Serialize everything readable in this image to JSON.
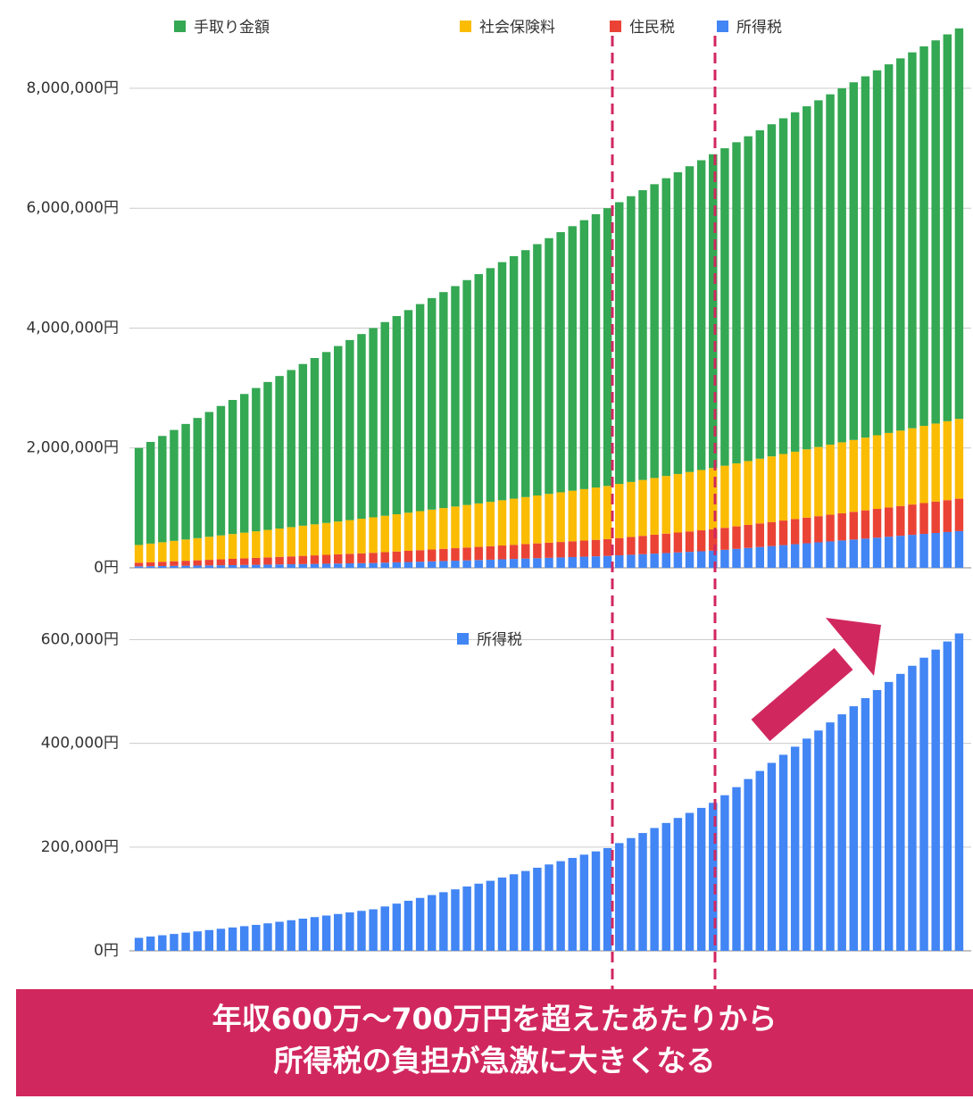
{
  "chart_data": [
    {
      "type": "bar",
      "stacked": true,
      "categories": [
        null,
        null,
        null,
        null,
        null,
        null,
        null,
        null,
        null,
        null,
        null,
        null,
        null,
        null,
        null,
        null,
        null,
        null,
        null,
        null,
        null,
        null,
        null,
        null,
        null,
        null,
        null,
        null,
        null,
        null,
        null,
        null,
        null,
        null,
        null,
        null,
        null,
        null,
        null,
        null,
        null,
        null,
        null,
        null,
        null,
        null,
        null,
        null,
        null,
        null,
        null,
        null,
        null,
        null,
        null,
        null,
        null,
        null,
        null,
        null,
        null,
        null,
        null,
        null,
        null,
        null,
        null,
        null,
        null,
        null,
        null
      ],
      "series": [
        {
          "name": "手取り金額",
          "color": "#34a853",
          "values": [
            1619000,
            1696200,
            1773400,
            1850600,
            1927800,
            2005000,
            2082200,
            2159400,
            2236600,
            2313800,
            2391000,
            2467700,
            2544400,
            2621100,
            2697800,
            2774500,
            2851200,
            2927900,
            3004600,
            3081300,
            3158000,
            3232200,
            3306400,
            3380600,
            3454800,
            3529000,
            3603200,
            3677400,
            3751600,
            3825800,
            3900000,
            3973400,
            4046800,
            4120200,
            4193600,
            4267000,
            4340400,
            4413800,
            4487200,
            4560600,
            4634000,
            4700800,
            4767600,
            4834400,
            4901200,
            4968000,
            5034800,
            5101600,
            5168400,
            5235200,
            5297000,
            5357900,
            5418800,
            5479700,
            5540600,
            5601500,
            5662400,
            5723300,
            5784200,
            5845100,
            5906000,
            5966900,
            6027800,
            6088700,
            6149600,
            6210500,
            6271400,
            6332300,
            6393200,
            6454100,
            6515000
          ]
        },
        {
          "name": "社会保険料",
          "color": "#fbbc04",
          "values": [
            296000,
            310800,
            325600,
            340400,
            355200,
            370000,
            384800,
            399600,
            414400,
            429200,
            444000,
            458800,
            473600,
            488400,
            503200,
            518000,
            532800,
            547600,
            562400,
            577200,
            592000,
            606800,
            621600,
            636400,
            651200,
            666000,
            680800,
            695600,
            710400,
            725200,
            740000,
            754800,
            769600,
            784400,
            799200,
            814000,
            828800,
            843600,
            858400,
            873200,
            888000,
            902800,
            917600,
            932400,
            947200,
            962000,
            976800,
            991600,
            1006400,
            1021200,
            1036000,
            1050800,
            1065600,
            1080400,
            1095200,
            1110000,
            1124800,
            1139600,
            1154400,
            1169200,
            1184000,
            1198800,
            1213600,
            1228400,
            1243200,
            1258000,
            1272800,
            1287600,
            1302400,
            1317200,
            1332000
          ]
        },
        {
          "name": "住民税",
          "color": "#ea4335",
          "values": [
            60000,
            65500,
            71000,
            76500,
            82000,
            87500,
            93000,
            98500,
            104000,
            109500,
            115000,
            120500,
            126000,
            131500,
            137000,
            142500,
            148000,
            153500,
            159000,
            164500,
            170000,
            175500,
            181000,
            186500,
            192000,
            197500,
            203000,
            208500,
            214000,
            219500,
            225000,
            230500,
            236000,
            241500,
            247000,
            252500,
            258000,
            263500,
            269000,
            274500,
            280000,
            288700,
            297400,
            306100,
            314800,
            323500,
            332200,
            340900,
            349600,
            358300,
            367000,
            375700,
            384400,
            393100,
            401800,
            410500,
            419200,
            427900,
            436600,
            445300,
            454000,
            462700,
            471400,
            480100,
            488800,
            497500,
            506200,
            514900,
            523600,
            532300,
            541000
          ]
        },
        {
          "name": "所得税",
          "color": "#4285f4",
          "values": [
            25000,
            27500,
            30000,
            32500,
            35000,
            37500,
            40000,
            42500,
            45000,
            47500,
            50000,
            53000,
            56000,
            59000,
            62000,
            65000,
            68000,
            71000,
            74000,
            77000,
            80000,
            85500,
            91000,
            96500,
            102000,
            107500,
            113000,
            118500,
            124000,
            129500,
            135000,
            141300,
            147600,
            153900,
            160200,
            166500,
            172800,
            179100,
            185400,
            191700,
            198000,
            207700,
            217400,
            227100,
            236800,
            246500,
            256200,
            265900,
            275600,
            285300,
            300000,
            315600,
            331200,
            346800,
            362400,
            378000,
            393600,
            409200,
            424800,
            440400,
            456000,
            471600,
            487200,
            502800,
            518400,
            534000,
            549600,
            565200,
            580800,
            596400,
            612000
          ]
        }
      ],
      "ylim": [
        0,
        9250000
      ],
      "yticks": [
        {
          "value": 0,
          "label": "0円"
        },
        {
          "value": 2000000,
          "label": "2,000,000円"
        },
        {
          "value": 4000000,
          "label": "4,000,000円"
        },
        {
          "value": 6000000,
          "label": "6,000,000円"
        },
        {
          "value": 8000000,
          "label": "8,000,000円"
        }
      ],
      "grid": true
    },
    {
      "type": "bar",
      "stacked": false,
      "categories": [
        null,
        null,
        null,
        null,
        null,
        null,
        null,
        null,
        null,
        null,
        null,
        null,
        null,
        null,
        null,
        null,
        null,
        null,
        null,
        null,
        null,
        null,
        null,
        null,
        null,
        null,
        null,
        null,
        null,
        null,
        null,
        null,
        null,
        null,
        null,
        null,
        null,
        null,
        null,
        null,
        null,
        null,
        null,
        null,
        null,
        null,
        null,
        null,
        null,
        null,
        null,
        null,
        null,
        null,
        null,
        null,
        null,
        null,
        null,
        null,
        null,
        null,
        null,
        null,
        null,
        null,
        null,
        null,
        null,
        null,
        null
      ],
      "series": [
        {
          "name": "所得税",
          "color": "#4285f4",
          "values": [
            25000,
            27500,
            30000,
            32500,
            35000,
            37500,
            40000,
            42500,
            45000,
            47500,
            50000,
            53000,
            56000,
            59000,
            62000,
            65000,
            68000,
            71000,
            74000,
            77000,
            80000,
            85500,
            91000,
            96500,
            102000,
            107500,
            113000,
            118500,
            124000,
            129500,
            135000,
            141300,
            147600,
            153900,
            160200,
            166500,
            172800,
            179100,
            185400,
            191700,
            198000,
            207700,
            217400,
            227100,
            236800,
            246500,
            256200,
            265900,
            275600,
            285300,
            300000,
            315600,
            331200,
            346800,
            362400,
            378000,
            393600,
            409200,
            424800,
            440400,
            456000,
            471600,
            487200,
            502800,
            518400,
            534000,
            549600,
            565200,
            580800,
            596400,
            612000
          ]
        }
      ],
      "ylim": [
        0,
        680000
      ],
      "yticks": [
        {
          "value": 0,
          "label": "0円"
        },
        {
          "value": 200000,
          "label": "200,000円"
        },
        {
          "value": 400000,
          "label": "400,000円"
        },
        {
          "value": 600000,
          "label": "600,000円"
        }
      ],
      "grid": true
    }
  ],
  "annotation": {
    "lines": [
      "年収600万〜700万円を超えたあたりから",
      "所得税の負担が急激に大きくなる"
    ]
  }
}
